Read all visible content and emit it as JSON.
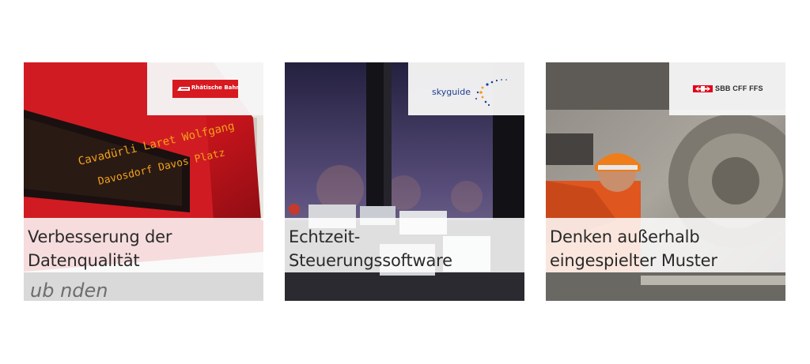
{
  "cards": [
    {
      "title_line1": "Verbesserung der",
      "title_line2": "Datenqualität",
      "logo_text": "Rhätische Bahn",
      "display_line1": "Cavadürli Laret Wolfgang",
      "display_line2": "Davosdorf Davos Platz",
      "banner_text": "ub  nden",
      "accent_color": "#d71920"
    },
    {
      "title_line1": "Echtzeit-",
      "title_line2": "Steuerungssoftware",
      "logo_text": "skyguide",
      "accent_color": "#1d3f8f"
    },
    {
      "title_line1": "Denken außerhalb",
      "title_line2": "eingespielter Muster",
      "logo_text": "SBB CFF FFS",
      "accent_color": "#e2001a"
    }
  ]
}
